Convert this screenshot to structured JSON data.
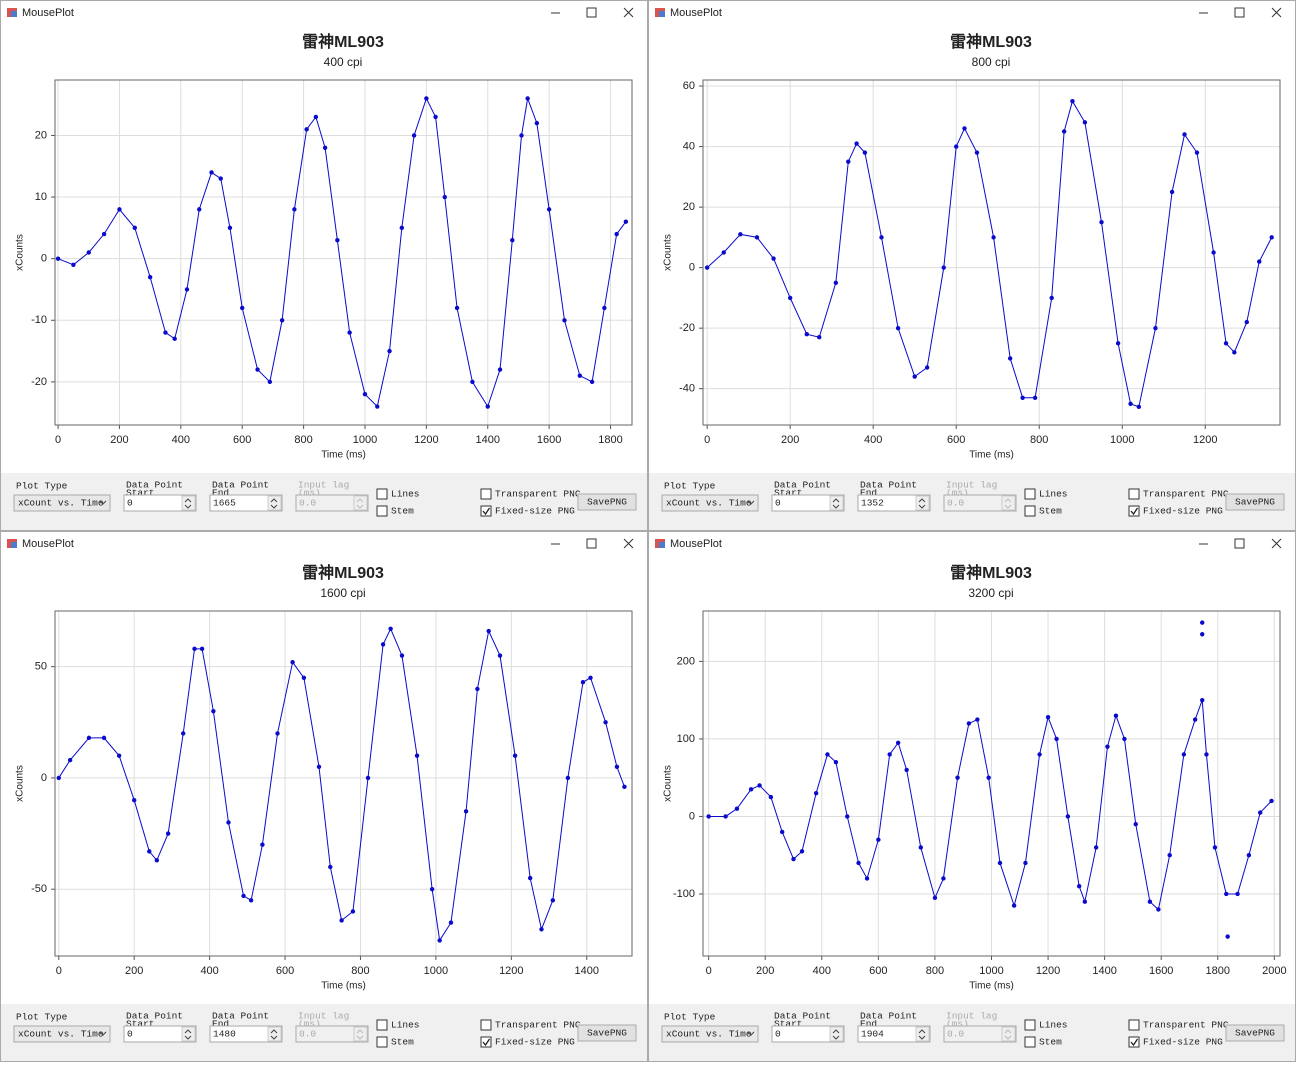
{
  "windows": [
    {
      "title": "MousePlot",
      "plot_type_label": "Plot Type",
      "plot_type": "xCount vs. Time",
      "start_label": [
        "Data Point",
        "Start"
      ],
      "start": "0",
      "end_label": [
        "Data Point",
        "End"
      ],
      "end": "1665",
      "lag_label": [
        "Input lag",
        "(ms)"
      ],
      "lag": "0.0",
      "lines_label": "Lines",
      "lines": false,
      "stem_label": "Stem",
      "stem": false,
      "transparent_label": "Transparent PNG",
      "transparent": false,
      "fixed_label": "Fixed-size PNG",
      "fixed": true,
      "button": "SavePNG"
    },
    {
      "title": "MousePlot",
      "plot_type_label": "Plot Type",
      "plot_type": "xCount vs. Time",
      "start_label": [
        "Data Point",
        "Start"
      ],
      "start": "0",
      "end_label": [
        "Data Point",
        "End"
      ],
      "end": "1352",
      "lag_label": [
        "Input lag",
        "(ms)"
      ],
      "lag": "0.0",
      "lines_label": "Lines",
      "lines": false,
      "stem_label": "Stem",
      "stem": false,
      "transparent_label": "Transparent PNG",
      "transparent": false,
      "fixed_label": "Fixed-size PNG",
      "fixed": true,
      "button": "SavePNG"
    },
    {
      "title": "MousePlot",
      "plot_type_label": "Plot Type",
      "plot_type": "xCount vs. Time",
      "start_label": [
        "Data Point",
        "Start"
      ],
      "start": "0",
      "end_label": [
        "Data Point",
        "End"
      ],
      "end": "1480",
      "lag_label": [
        "Input lag",
        "(ms)"
      ],
      "lag": "0.0",
      "lines_label": "Lines",
      "lines": false,
      "stem_label": "Stem",
      "stem": false,
      "transparent_label": "Transparent PNG",
      "transparent": false,
      "fixed_label": "Fixed-size PNG",
      "fixed": true,
      "button": "SavePNG"
    },
    {
      "title": "MousePlot",
      "plot_type_label": "Plot Type",
      "plot_type": "xCount vs. Time",
      "start_label": [
        "Data Point",
        "Start"
      ],
      "start": "0",
      "end_label": [
        "Data Point",
        "End"
      ],
      "end": "1904",
      "lag_label": [
        "Input lag",
        "(ms)"
      ],
      "lag": "0.0",
      "lines_label": "Lines",
      "lines": false,
      "stem_label": "Stem",
      "stem": false,
      "transparent_label": "Transparent PNG",
      "transparent": false,
      "fixed_label": "Fixed-size PNG",
      "fixed": true,
      "button": "SavePNG"
    }
  ],
  "chart_data": [
    {
      "type": "line",
      "title": "雷神ML903",
      "subtitle": "400 cpi",
      "x_label": "Time (ms)",
      "y_label": "xCounts",
      "color": "#0a0acc",
      "grid": true,
      "x": [
        0,
        50,
        100,
        150,
        200,
        250,
        300,
        350,
        380,
        420,
        460,
        500,
        530,
        560,
        600,
        650,
        690,
        730,
        770,
        810,
        840,
        870,
        910,
        950,
        1000,
        1040,
        1080,
        1120,
        1160,
        1200,
        1230,
        1260,
        1300,
        1350,
        1400,
        1440,
        1480,
        1510,
        1530,
        1560,
        1600,
        1650,
        1700,
        1740,
        1780,
        1820,
        1850
      ],
      "values": [
        0,
        -1,
        1,
        4,
        8,
        5,
        -3,
        -12,
        -13,
        -5,
        8,
        14,
        13,
        5,
        -8,
        -18,
        -20,
        -10,
        8,
        21,
        23,
        18,
        3,
        -12,
        -22,
        -24,
        -15,
        5,
        20,
        26,
        23,
        10,
        -8,
        -20,
        -24,
        -18,
        3,
        20,
        26,
        22,
        8,
        -10,
        -19,
        -20,
        -8,
        4,
        6
      ],
      "xlim": [
        -10,
        1870
      ],
      "ylim": [
        -27,
        29
      ],
      "xticks": [
        0,
        200,
        400,
        600,
        800,
        1000,
        1200,
        1400,
        1600,
        1800
      ],
      "yticks": [
        -20,
        -10,
        0,
        10,
        20
      ]
    },
    {
      "type": "line",
      "title": "雷神ML903",
      "subtitle": "800 cpi",
      "x_label": "Time (ms)",
      "y_label": "xCounts",
      "color": "#0a0acc",
      "grid": true,
      "x": [
        0,
        40,
        80,
        120,
        160,
        200,
        240,
        270,
        310,
        340,
        360,
        380,
        420,
        460,
        500,
        530,
        570,
        600,
        620,
        650,
        690,
        730,
        760,
        790,
        830,
        860,
        880,
        910,
        950,
        990,
        1020,
        1040,
        1080,
        1120,
        1150,
        1180,
        1220,
        1250,
        1270,
        1300,
        1330,
        1360
      ],
      "values": [
        0,
        5,
        11,
        10,
        3,
        -10,
        -22,
        -23,
        -5,
        35,
        41,
        38,
        10,
        -20,
        -36,
        -33,
        0,
        40,
        46,
        38,
        10,
        -30,
        -43,
        -43,
        -10,
        45,
        55,
        48,
        15,
        -25,
        -45,
        -46,
        -20,
        25,
        44,
        38,
        5,
        -25,
        -28,
        -18,
        2,
        10
      ],
      "xlim": [
        -10,
        1380
      ],
      "ylim": [
        -52,
        62
      ],
      "xticks": [
        0,
        200,
        400,
        600,
        800,
        1000,
        1200
      ],
      "yticks": [
        -40,
        -20,
        0,
        20,
        40,
        60
      ]
    },
    {
      "type": "line",
      "title": "雷神ML903",
      "subtitle": "1600 cpi",
      "x_label": "Time (ms)",
      "y_label": "xCounts",
      "color": "#0a0acc",
      "grid": true,
      "x": [
        0,
        30,
        80,
        120,
        160,
        200,
        240,
        260,
        290,
        330,
        360,
        380,
        410,
        450,
        490,
        510,
        540,
        580,
        620,
        650,
        690,
        720,
        750,
        780,
        820,
        860,
        880,
        910,
        950,
        990,
        1010,
        1040,
        1080,
        1110,
        1140,
        1170,
        1210,
        1250,
        1280,
        1310,
        1350,
        1390,
        1410,
        1450,
        1480,
        1500
      ],
      "values": [
        0,
        8,
        18,
        18,
        10,
        -10,
        -33,
        -37,
        -25,
        20,
        58,
        58,
        30,
        -20,
        -53,
        -55,
        -30,
        20,
        52,
        45,
        5,
        -40,
        -64,
        -60,
        0,
        60,
        67,
        55,
        10,
        -50,
        -73,
        -65,
        -15,
        40,
        66,
        55,
        10,
        -45,
        -68,
        -55,
        0,
        43,
        45,
        25,
        5,
        -4
      ],
      "xlim": [
        -10,
        1520
      ],
      "ylim": [
        -80,
        75
      ],
      "xticks": [
        0,
        200,
        400,
        600,
        800,
        1000,
        1200,
        1400
      ],
      "yticks": [
        -50,
        0,
        50
      ]
    },
    {
      "type": "line",
      "title": "雷神ML903",
      "subtitle": "3200 cpi",
      "x_label": "Time (ms)",
      "y_label": "xCounts",
      "color": "#0a0acc",
      "grid": true,
      "x": [
        0,
        60,
        100,
        150,
        180,
        220,
        260,
        300,
        330,
        380,
        420,
        450,
        490,
        530,
        560,
        600,
        640,
        670,
        700,
        750,
        800,
        830,
        880,
        920,
        950,
        990,
        1030,
        1080,
        1120,
        1170,
        1200,
        1230,
        1270,
        1310,
        1330,
        1370,
        1410,
        1440,
        1470,
        1510,
        1560,
        1590,
        1630,
        1680,
        1720,
        1745,
        1760,
        1790,
        1830,
        1870,
        1910,
        1950,
        1990
      ],
      "values": [
        0,
        0,
        10,
        35,
        40,
        25,
        -20,
        -55,
        -45,
        30,
        80,
        70,
        0,
        -60,
        -80,
        -30,
        80,
        95,
        60,
        -40,
        -105,
        -80,
        50,
        120,
        125,
        50,
        -60,
        -115,
        -60,
        80,
        128,
        100,
        0,
        -90,
        -110,
        -40,
        90,
        130,
        100,
        -10,
        -110,
        -120,
        -50,
        80,
        125,
        150,
        80,
        -40,
        -100,
        -100,
        -50,
        5,
        20
      ],
      "extra_points": {
        "x": [
          1745,
          1745,
          1835
        ],
        "values": [
          250,
          235,
          -155
        ]
      },
      "xlim": [
        -20,
        2020
      ],
      "ylim": [
        -180,
        265
      ],
      "xticks": [
        0,
        200,
        400,
        600,
        800,
        1000,
        1200,
        1400,
        1600,
        1800,
        2000
      ],
      "yticks": [
        -100,
        0,
        100,
        200
      ]
    }
  ]
}
